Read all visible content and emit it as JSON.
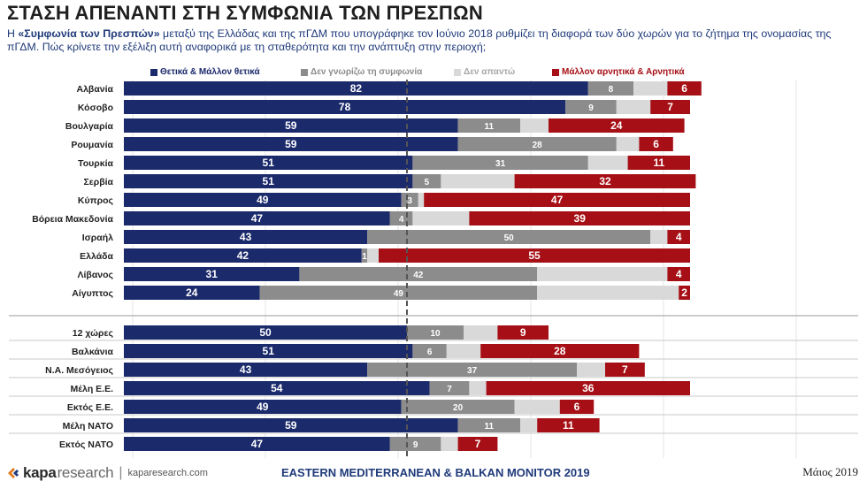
{
  "header": {
    "title": "ΣΤΑΣΗ ΑΠΕΝΑΝΤΙ ΣΤΗ ΣΥΜΦΩΝΙΑ ΤΩΝ ΠΡΕΣΠΩΝ",
    "subtitle_prefix": "Η ",
    "subtitle_bold": "«Συμφωνία των Πρεσπών»",
    "subtitle_rest": " μεταξύ της Ελλάδας και της πΓΔΜ που υπογράφηκε τον Ιούνιο 2018 ρυθμίζει τη διαφορά των δύο χωρών για το ζήτημα της ονομασίας της πΓΔΜ. Πώς κρίνετε την εξέλιξη αυτή αναφορικά με τη σταθερότητα και την ανάπτυξη στην περιοχή;"
  },
  "footer": {
    "logo_kapa": "kapa",
    "logo_research": "research",
    "site": "kaparesearch.com",
    "center": "EASTERN MEDITERRANEAN & BALKAN MONITOR 2019",
    "date": "Μάιος 2019"
  },
  "chart_data": {
    "type": "bar",
    "orientation": "horizontal",
    "stacked": true,
    "xlim": [
      0,
      100
    ],
    "categories": [
      "Αλβανία",
      "Κόσοβο",
      "Βουλγαρία",
      "Ρουμανία",
      "Τουρκία",
      "Σερβία",
      "Κύπρος",
      "Βόρεια Μακεδονία",
      "Ισραήλ",
      "Ελλάδα",
      "Λίβανος",
      "Αίγυπτος",
      "12 χώρες",
      "Βαλκάνια",
      "Ν.Α. Μεσόγειος",
      "Μέλη Ε.Ε.",
      "Εκτός Ε.Ε.",
      "Μέλη ΝΑΤΟ",
      "Εκτός ΝΑΤΟ"
    ],
    "groups": [
      {
        "categories": [
          "Αλβανία",
          "Κόσοβο",
          "Βουλγαρία",
          "Ρουμανία",
          "Τουρκία",
          "Σερβία",
          "Κύπρος",
          "Βόρεια Μακεδονία",
          "Ισραήλ",
          "Ελλάδα",
          "Λίβανος",
          "Αίγυπτος"
        ]
      },
      {
        "categories": [
          "12 χώρες",
          "Βαλκάνια",
          "Ν.Α. Μεσόγειος",
          "Μέλη Ε.Ε.",
          "Εκτός Ε.Ε.",
          "Μέλη ΝΑΤΟ",
          "Εκτός ΝΑΤΟ"
        ]
      }
    ],
    "series": [
      {
        "name": "Θετικά & Μάλλον θετικά",
        "color": "#1b2a6b",
        "values": [
          82,
          78,
          59,
          59,
          51,
          51,
          49,
          47,
          43,
          42,
          31,
          24,
          50,
          51,
          43,
          54,
          49,
          59,
          47
        ]
      },
      {
        "name": "Δεν γνωρίζω τη συμφωνία",
        "color": "#8c8c8c",
        "values": [
          8,
          9,
          11,
          28,
          31,
          5,
          3,
          4,
          50,
          1,
          42,
          49,
          10,
          6,
          37,
          7,
          20,
          11,
          9
        ]
      },
      {
        "name": "Δεν απαντώ",
        "color": "#d9d9d9",
        "values": [
          6,
          6,
          5,
          4,
          7,
          13,
          1,
          10,
          3,
          2,
          23,
          25,
          6,
          6,
          5,
          3,
          8,
          3,
          3
        ]
      },
      {
        "name": "Μάλλον αρνητικά & Αρνητικά",
        "color": "#a50f15",
        "values": [
          6,
          7,
          24,
          6,
          11,
          32,
          47,
          39,
          4,
          55,
          4,
          2,
          9,
          28,
          7,
          36,
          6,
          11,
          7
        ]
      }
    ],
    "value_labels_shown": [
      [
        true,
        true,
        false,
        true
      ],
      [
        true,
        true,
        false,
        true
      ],
      [
        true,
        true,
        false,
        true
      ],
      [
        true,
        true,
        false,
        true
      ],
      [
        true,
        true,
        false,
        true
      ],
      [
        true,
        true,
        false,
        true
      ],
      [
        true,
        true,
        false,
        true
      ],
      [
        true,
        true,
        false,
        true
      ],
      [
        true,
        true,
        false,
        true
      ],
      [
        true,
        true,
        false,
        true
      ],
      [
        true,
        true,
        false,
        true
      ],
      [
        true,
        true,
        false,
        true
      ],
      [
        true,
        true,
        false,
        true
      ],
      [
        true,
        true,
        false,
        true
      ],
      [
        true,
        true,
        false,
        true
      ],
      [
        true,
        true,
        false,
        true
      ],
      [
        true,
        true,
        false,
        true
      ],
      [
        true,
        true,
        false,
        true
      ],
      [
        true,
        true,
        false,
        true
      ]
    ],
    "reference_line": 50,
    "grid": true,
    "legend_position": "top"
  }
}
